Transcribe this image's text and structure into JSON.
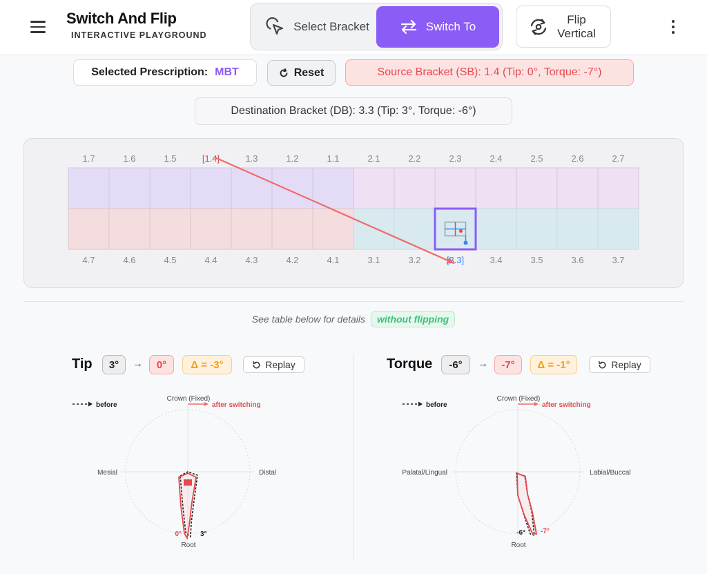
{
  "header": {
    "title": "Switch And Flip",
    "subtitle": "INTERACTIVE PLAYGROUND",
    "select_bracket": "Select Bracket",
    "switch_to": "Switch To",
    "flip_vertical": "Flip Vertical"
  },
  "chips": {
    "prescription_label": "Selected Prescription:",
    "prescription_value": "MBT",
    "reset": "Reset",
    "source": "Source Bracket (SB): 1.4 (Tip: 0°, Torque: -7°)",
    "destination": "Destination Bracket (DB): 3.3 (Tip: 3°, Torque: -6°)"
  },
  "grid": {
    "upper_labels": [
      "1.7",
      "1.6",
      "1.5",
      "[1.4]",
      "1.3",
      "1.2",
      "1.1",
      "2.1",
      "2.2",
      "2.3",
      "2.4",
      "2.5",
      "2.6",
      "2.7"
    ],
    "lower_labels": [
      "4.7",
      "4.6",
      "4.5",
      "4.4",
      "4.3",
      "4.2",
      "4.1",
      "3.1",
      "3.2",
      "[3.3]",
      "3.4",
      "3.5",
      "3.6",
      "3.7"
    ],
    "source_index_upper": 3,
    "dest_index_lower": 9,
    "colors": {
      "upper_left": "#e4dcf7",
      "upper_right": "#efe0f4",
      "lower_left": "#f5dcdf",
      "lower_right": "#d8eaf0",
      "arrow": "#f06a6a",
      "selection": "#8b5cf6"
    }
  },
  "caption": {
    "text": "See table below for details",
    "pill": "without flipping"
  },
  "tip": {
    "title": "Tip",
    "from": "3°",
    "arrow": "→",
    "to": "0°",
    "delta": "Δ = -3°",
    "replay": "Replay",
    "legend_before": "before",
    "legend_after": "after switching",
    "label_top": "Crown (Fixed)",
    "label_left": "Mesial",
    "label_right": "Distal",
    "label_bottom": "Root",
    "angle_after": "0°",
    "angle_before": "3°"
  },
  "torque": {
    "title": "Torque",
    "from": "-6°",
    "arrow": "→",
    "to": "-7°",
    "delta": "Δ = -1°",
    "replay": "Replay",
    "legend_before": "before",
    "legend_after": "after switching",
    "label_top": "Crown (Fixed)",
    "label_left": "Palatal/Lingual",
    "label_right": "Labial/Buccal",
    "label_bottom": "Root",
    "angle_before": "-6°",
    "angle_after": "-7°"
  }
}
